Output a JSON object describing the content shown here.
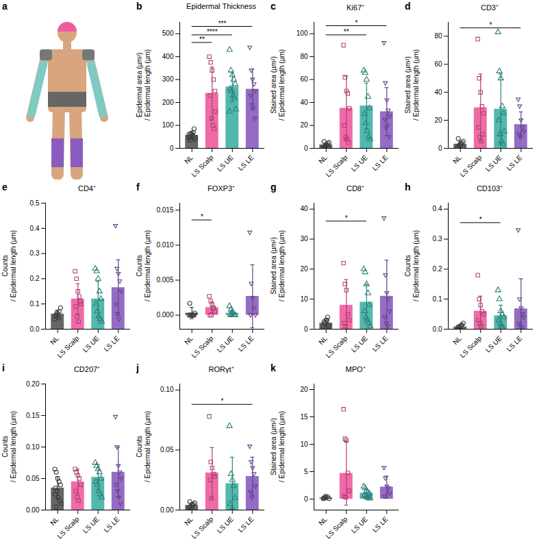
{
  "illustration": {
    "panel": "a"
  },
  "chart_data": [
    {
      "panel": "b",
      "type": "bar",
      "title": "Epidermal Thickness",
      "y_label": [
        "Epidermal area (µm²)",
        "/ Epidermal length (µm)"
      ],
      "categories": [
        "NL",
        "LS Scalp",
        "LS UE",
        "LS LE"
      ],
      "values": [
        57,
        240,
        268,
        258
      ],
      "errors": [
        15,
        115,
        65,
        88
      ],
      "points": [
        [
          45,
          60,
          55,
          70,
          40,
          50,
          65,
          58,
          85,
          48,
          62,
          35
        ],
        [
          400,
          375,
          340,
          300,
          250,
          230,
          130,
          100,
          85,
          160
        ],
        [
          430,
          340,
          320,
          300,
          280,
          260,
          250,
          230,
          220,
          170,
          160
        ],
        [
          440,
          340,
          300,
          280,
          250,
          230,
          190,
          175,
          130
        ]
      ],
      "colors": [
        "#555555",
        "#ee5a9f",
        "#3fb0a5",
        "#8a5cbf"
      ],
      "ylim": [
        0,
        550
      ],
      "yticks": [
        0,
        100,
        200,
        300,
        400,
        500
      ],
      "significance": [
        {
          "from": "NL",
          "to": "LS LE",
          "text": "***",
          "y": 532
        },
        {
          "from": "NL",
          "to": "LS UE",
          "text": "****",
          "y": 495
        },
        {
          "from": "NL",
          "to": "LS Scalp",
          "text": "**",
          "y": 462
        }
      ]
    },
    {
      "panel": "c",
      "type": "bar",
      "title": "Ki67⁺",
      "y_label": [
        "Stained area (µm²)",
        "/ Epidermal length (µm)"
      ],
      "categories": [
        "NL",
        "LS Scalp",
        "LS UE",
        "LS LE"
      ],
      "values": [
        3,
        35,
        37,
        32
      ],
      "errors": [
        1.5,
        28,
        20,
        21
      ],
      "points": [
        [
          1,
          2,
          3,
          4,
          5,
          6,
          2,
          3,
          1.5
        ],
        [
          90,
          62,
          50,
          48,
          35,
          20,
          10,
          8,
          5
        ],
        [
          68,
          66,
          60,
          45,
          35,
          30,
          22,
          15,
          10,
          8
        ],
        [
          92,
          57,
          42,
          33,
          28,
          25,
          18,
          20,
          10
        ]
      ],
      "colors": [
        "#555555",
        "#ee5a9f",
        "#3fb0a5",
        "#8a5cbf"
      ],
      "ylim": [
        0,
        110
      ],
      "yticks": [
        0,
        20,
        40,
        60,
        80,
        100
      ],
      "significance": [
        {
          "from": "NL",
          "to": "LS LE",
          "text": "*",
          "y": 107
        },
        {
          "from": "NL",
          "to": "LS UE",
          "text": "**",
          "y": 99
        }
      ]
    },
    {
      "panel": "d",
      "type": "bar",
      "title": "CD3⁺",
      "y_label": [
        "Stained area (µm²)",
        "/ Epidermal length (µm)"
      ],
      "categories": [
        "NL",
        "LS Scalp",
        "LS UE",
        "LS LE"
      ],
      "values": [
        3,
        29,
        28,
        17
      ],
      "errors": [
        2,
        24,
        25,
        9
      ],
      "points": [
        [
          1,
          2,
          3,
          4,
          5,
          7,
          2,
          3,
          1
        ],
        [
          78,
          50,
          40,
          30,
          25,
          15,
          8,
          5,
          10
        ],
        [
          83,
          55,
          50,
          30,
          25,
          20,
          10,
          5,
          3,
          12
        ],
        [
          35,
          30,
          20,
          15,
          12,
          10,
          8
        ]
      ],
      "colors": [
        "#555555",
        "#ee5a9f",
        "#3fb0a5",
        "#8a5cbf"
      ],
      "ylim": [
        0,
        90
      ],
      "yticks": [
        0,
        20,
        40,
        60,
        80
      ],
      "significance": [
        {
          "from": "NL",
          "to": "LS LE",
          "text": "*",
          "y": 86
        }
      ]
    },
    {
      "panel": "e",
      "type": "bar",
      "title": "CD4⁺",
      "y_label": [
        "Counts",
        "/ Epidermal length (µm)"
      ],
      "categories": [
        "NL",
        "LS Scalp",
        "LS UE",
        "LS LE"
      ],
      "values": [
        0.06,
        0.12,
        0.12,
        0.165
      ],
      "errors": [
        0.015,
        0.06,
        0.07,
        0.11
      ],
      "points": [
        [
          0.04,
          0.05,
          0.06,
          0.07,
          0.085,
          0.055,
          0.065,
          0.045
        ],
        [
          0.23,
          0.2,
          0.15,
          0.13,
          0.1,
          0.09,
          0.05,
          0.03,
          0.11
        ],
        [
          0.24,
          0.23,
          0.2,
          0.15,
          0.12,
          0.1,
          0.07,
          0.05,
          0.04,
          0.03
        ],
        [
          0.41,
          0.24,
          0.22,
          0.19,
          0.15,
          0.1,
          0.06,
          0.04
        ]
      ],
      "colors": [
        "#555555",
        "#ee5a9f",
        "#3fb0a5",
        "#8a5cbf"
      ],
      "ylim": [
        0,
        0.5
      ],
      "yticks": [
        {
          "value": 0,
          "label": "0.0"
        },
        0.1,
        0.2,
        0.3,
        0.4,
        0.5
      ],
      "significance": []
    },
    {
      "panel": "f",
      "type": "bar",
      "title": "FOXP3⁺",
      "y_label": [
        "Counts",
        "/ Epidermal length (µm)"
      ],
      "categories": [
        "NL",
        "LS Scalp",
        "LS UE",
        "LS LE"
      ],
      "values": [
        0.0003,
        0.0011,
        0.0003,
        0.0027
      ],
      "errors": [
        0.0008,
        0.0008,
        0.0004,
        0.0045
      ],
      "points": [
        [
          0,
          0,
          0,
          0,
          0.0003,
          0.0017,
          0,
          0,
          0
        ],
        [
          0.0027,
          0.002,
          0.0015,
          0.001,
          0.0005,
          0,
          0,
          0.001
        ],
        [
          0.0013,
          0.0008,
          0.0005,
          0,
          0,
          0.0001,
          0,
          0.0003
        ],
        [
          0.0118,
          0.0045,
          0.0025,
          0.001,
          0,
          0
        ]
      ],
      "colors": [
        "#555555",
        "#ee5a9f",
        "#3fb0a5",
        "#8a5cbf"
      ],
      "ylim": [
        -0.002,
        0.016
      ],
      "yticks": [
        {
          "value": 0,
          "label": "0.000"
        },
        0.005,
        {
          "value": 0.01,
          "label": "0.010"
        },
        0.015
      ],
      "significance": [
        {
          "from": "NL",
          "to": "LS Scalp",
          "text": "*",
          "y": 0.0136
        }
      ]
    },
    {
      "panel": "g",
      "type": "bar",
      "title": "CD8⁺",
      "y_label": [
        "Stained area (µm²)",
        "/ Epidermal length (µm)"
      ],
      "categories": [
        "NL",
        "LS Scalp",
        "LS UE",
        "LS LE"
      ],
      "values": [
        2,
        8,
        9,
        11
      ],
      "errors": [
        1,
        8.5,
        6,
        12
      ],
      "points": [
        [
          1,
          2,
          3,
          4,
          1.5,
          2.5,
          2,
          3,
          1
        ],
        [
          22,
          15,
          13,
          5,
          3,
          2,
          1
        ],
        [
          20,
          19,
          15,
          12,
          8,
          6,
          4,
          3,
          2,
          1
        ],
        [
          37,
          18,
          12,
          10,
          6,
          4,
          2,
          1
        ]
      ],
      "colors": [
        "#555555",
        "#ee5a9f",
        "#3fb0a5",
        "#8a5cbf"
      ],
      "ylim": [
        0,
        42
      ],
      "yticks": [
        0,
        10,
        20,
        30,
        40
      ],
      "significance": [
        {
          "from": "NL",
          "to": "LS UE",
          "text": "*",
          "y": 36
        }
      ]
    },
    {
      "panel": "h",
      "type": "bar",
      "title": "CD103⁺",
      "y_label": [
        "Counts",
        "/ Epidermal length (µm)"
      ],
      "categories": [
        "NL",
        "LS Scalp",
        "LS UE",
        "LS LE"
      ],
      "values": [
        0.008,
        0.06,
        0.045,
        0.068
      ],
      "errors": [
        0.005,
        0.05,
        0.035,
        0.1
      ],
      "points": [
        [
          0,
          0.005,
          0.01,
          0.015,
          0.02,
          0.008,
          0.003,
          0.012
        ],
        [
          0.18,
          0.1,
          0.08,
          0.06,
          0.05,
          0.03,
          0.02,
          0.01
        ],
        [
          0.13,
          0.1,
          0.06,
          0.05,
          0.04,
          0.03,
          0.02,
          0.01,
          0.005
        ],
        [
          0.33,
          0.1,
          0.07,
          0.05,
          0.04,
          0.02,
          0.01,
          0.005
        ]
      ],
      "colors": [
        "#555555",
        "#ee5a9f",
        "#3fb0a5",
        "#8a5cbf"
      ],
      "ylim": [
        0,
        0.42
      ],
      "yticks": [
        {
          "value": 0,
          "label": "0.0"
        },
        0.1,
        0.2,
        0.3,
        0.4
      ],
      "significance": [
        {
          "from": "NL",
          "to": "LS UE",
          "text": "*",
          "y": 0.355
        }
      ]
    },
    {
      "panel": "i",
      "type": "bar",
      "title": "CD207⁺",
      "y_label": [
        "Counts",
        "/ Epidermal length (µm)"
      ],
      "categories": [
        "NL",
        "LS Scalp",
        "LS UE",
        "LS LE"
      ],
      "values": [
        0.035,
        0.045,
        0.052,
        0.06
      ],
      "errors": [
        0.018,
        0.02,
        0.02,
        0.04
      ],
      "points": [
        [
          0.065,
          0.06,
          0.05,
          0.045,
          0.04,
          0.035,
          0.03,
          0.02,
          0.015,
          0.01,
          0.025,
          0.005
        ],
        [
          0.065,
          0.06,
          0.055,
          0.05,
          0.04,
          0.03,
          0.02,
          0.015
        ],
        [
          0.075,
          0.07,
          0.065,
          0.06,
          0.05,
          0.045,
          0.04,
          0.03,
          0.025,
          0.02
        ],
        [
          0.148,
          0.1,
          0.07,
          0.06,
          0.05,
          0.04,
          0.03,
          0.02,
          0.01
        ]
      ],
      "colors": [
        "#555555",
        "#ee5a9f",
        "#3fb0a5",
        "#8a5cbf"
      ],
      "ylim": [
        0,
        0.2
      ],
      "yticks": [
        {
          "value": 0,
          "label": "0.00"
        },
        0.05,
        {
          "value": 0.1,
          "label": "0.10"
        },
        0.15,
        {
          "value": 0.2,
          "label": "0.20"
        }
      ],
      "significance": []
    },
    {
      "panel": "j",
      "type": "bar",
      "title": "RORγt⁺",
      "y_label": [
        "Counts",
        "/ Epidermal length (µm)"
      ],
      "categories": [
        "NL",
        "LS Scalp",
        "LS UE",
        "LS LE"
      ],
      "values": [
        0.004,
        0.031,
        0.022,
        0.028
      ],
      "errors": [
        0.002,
        0.021,
        0.022,
        0.016
      ],
      "points": [
        [
          0.002,
          0.003,
          0.004,
          0.005,
          0.006,
          0.007,
          0.001,
          0.004
        ],
        [
          0.078,
          0.04,
          0.035,
          0.03,
          0.028,
          0.025,
          0.01
        ],
        [
          0.07,
          0.03,
          0.025,
          0.02,
          0.01,
          0.005,
          0,
          0
        ],
        [
          0.053,
          0.04,
          0.035,
          0.03,
          0.02,
          0.015,
          0.01
        ]
      ],
      "colors": [
        "#555555",
        "#ee5a9f",
        "#3fb0a5",
        "#8a5cbf"
      ],
      "ylim": [
        0,
        0.105
      ],
      "yticks": [
        {
          "value": 0,
          "label": "0.00"
        },
        0.05,
        {
          "value": 0.1,
          "label": "0.10"
        }
      ],
      "significance": [
        {
          "from": "NL",
          "to": "LS LE",
          "text": "*",
          "y": 0.088
        }
      ]
    },
    {
      "panel": "k",
      "type": "bar",
      "title": "MPO⁺",
      "y_label": [
        "Stained area (µm²)",
        "/ Epidermal length (µm)"
      ],
      "categories": [
        "NL",
        "LS Scalp",
        "LS UE",
        "LS LE"
      ],
      "values": [
        0.2,
        4.7,
        1.1,
        2.2
      ],
      "errors": [
        0.2,
        5.8,
        0.7,
        2
      ],
      "points": [
        [
          0.1,
          0.2,
          0.3,
          0.4,
          0.1,
          0.2,
          0.5
        ],
        [
          16.4,
          11,
          10.7,
          4.8,
          1.5,
          0.5,
          0.3
        ],
        [
          2.3,
          2,
          1.5,
          1.2,
          1,
          0.8,
          0.5,
          0.3,
          0.2,
          0.1
        ],
        [
          5.7,
          3.8,
          2.3,
          2,
          1,
          0.5
        ]
      ],
      "colors": [
        "#555555",
        "#ee5a9f",
        "#3fb0a5",
        "#8a5cbf"
      ],
      "ylim": [
        -2,
        21
      ],
      "yticks": [
        0,
        5,
        10,
        15,
        20
      ],
      "significance": []
    }
  ]
}
